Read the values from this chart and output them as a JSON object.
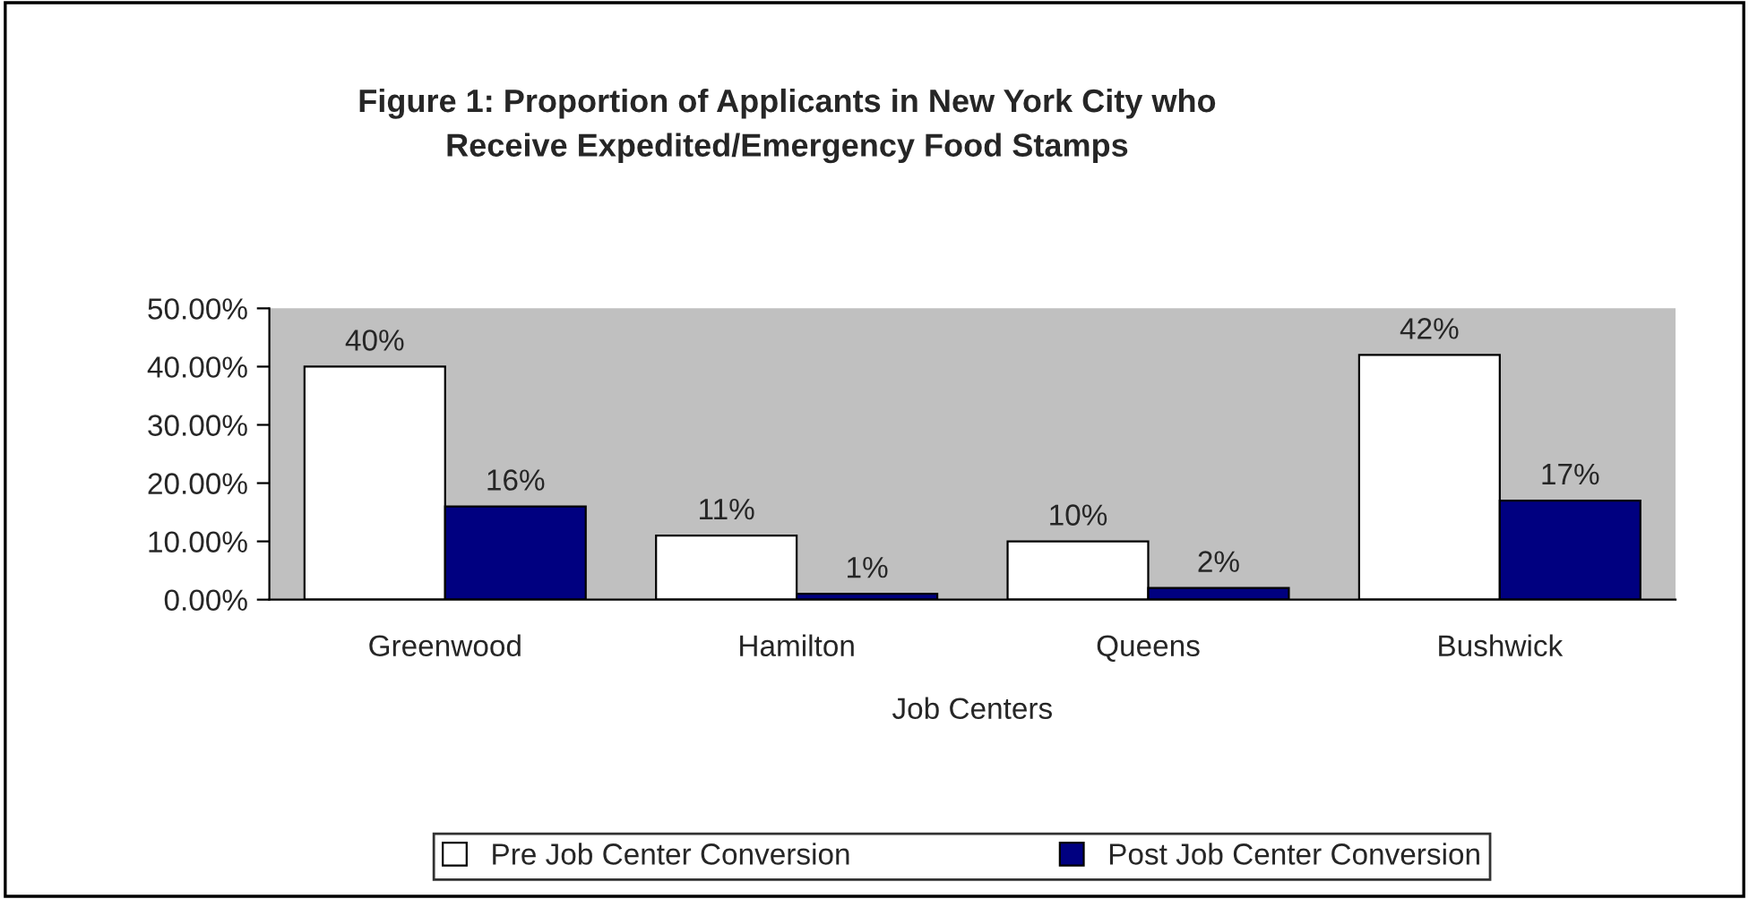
{
  "chart_data": {
    "type": "bar",
    "title": "Figure 1: Proportion of Applicants in New York City who\nReceive Expedited/Emergency Food Stamps",
    "xlabel": "Job Centers",
    "categories": [
      "Greenwood",
      "Hamilton",
      "Queens",
      "Bushwick"
    ],
    "series": [
      {
        "name": "Pre Job Center Conversion",
        "color": "#ffffff",
        "values": [
          40,
          11,
          10,
          42
        ],
        "value_labels": [
          "40%",
          "11%",
          "10%",
          "42%"
        ]
      },
      {
        "name": "Post Job Center Conversion",
        "color": "#000080",
        "values": [
          16,
          1,
          2,
          17
        ],
        "value_labels": [
          "16%",
          "1%",
          "2%",
          "17%"
        ]
      }
    ],
    "ylim": [
      0,
      50
    ],
    "yticks": [
      {
        "value": 0,
        "label": "0.00%"
      },
      {
        "value": 10,
        "label": "10.00%"
      },
      {
        "value": 20,
        "label": "20.00%"
      },
      {
        "value": 30,
        "label": "30.00%"
      },
      {
        "value": 40,
        "label": "40.00%"
      },
      {
        "value": 50,
        "label": "50.00%"
      }
    ],
    "grid": false,
    "legend": "bottom"
  }
}
